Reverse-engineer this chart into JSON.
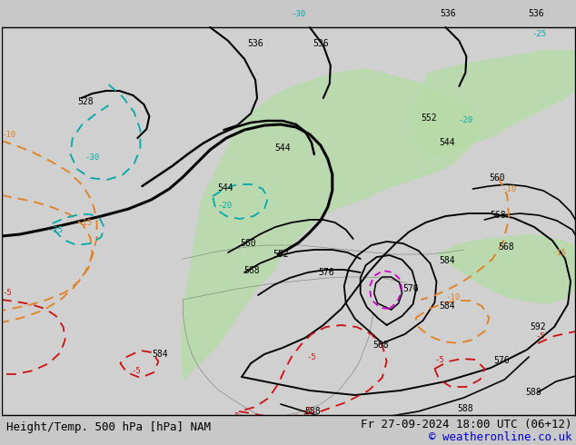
{
  "title_left": "Height/Temp. 500 hPa [hPa] NAM",
  "title_right": "Fr 27-09-2024 18:00 UTC (06+12)",
  "copyright": "© weatheronline.co.uk",
  "bg_color": "#c8c8c8",
  "map_bg_color": "#d0d0d0",
  "green_fill_color": "#b8dba8",
  "text_color_footer_left": "#000000",
  "text_color_footer_right": "#000000",
  "text_color_copyright": "#0000cc",
  "footer_fontsize": 9,
  "copyright_fontsize": 9
}
